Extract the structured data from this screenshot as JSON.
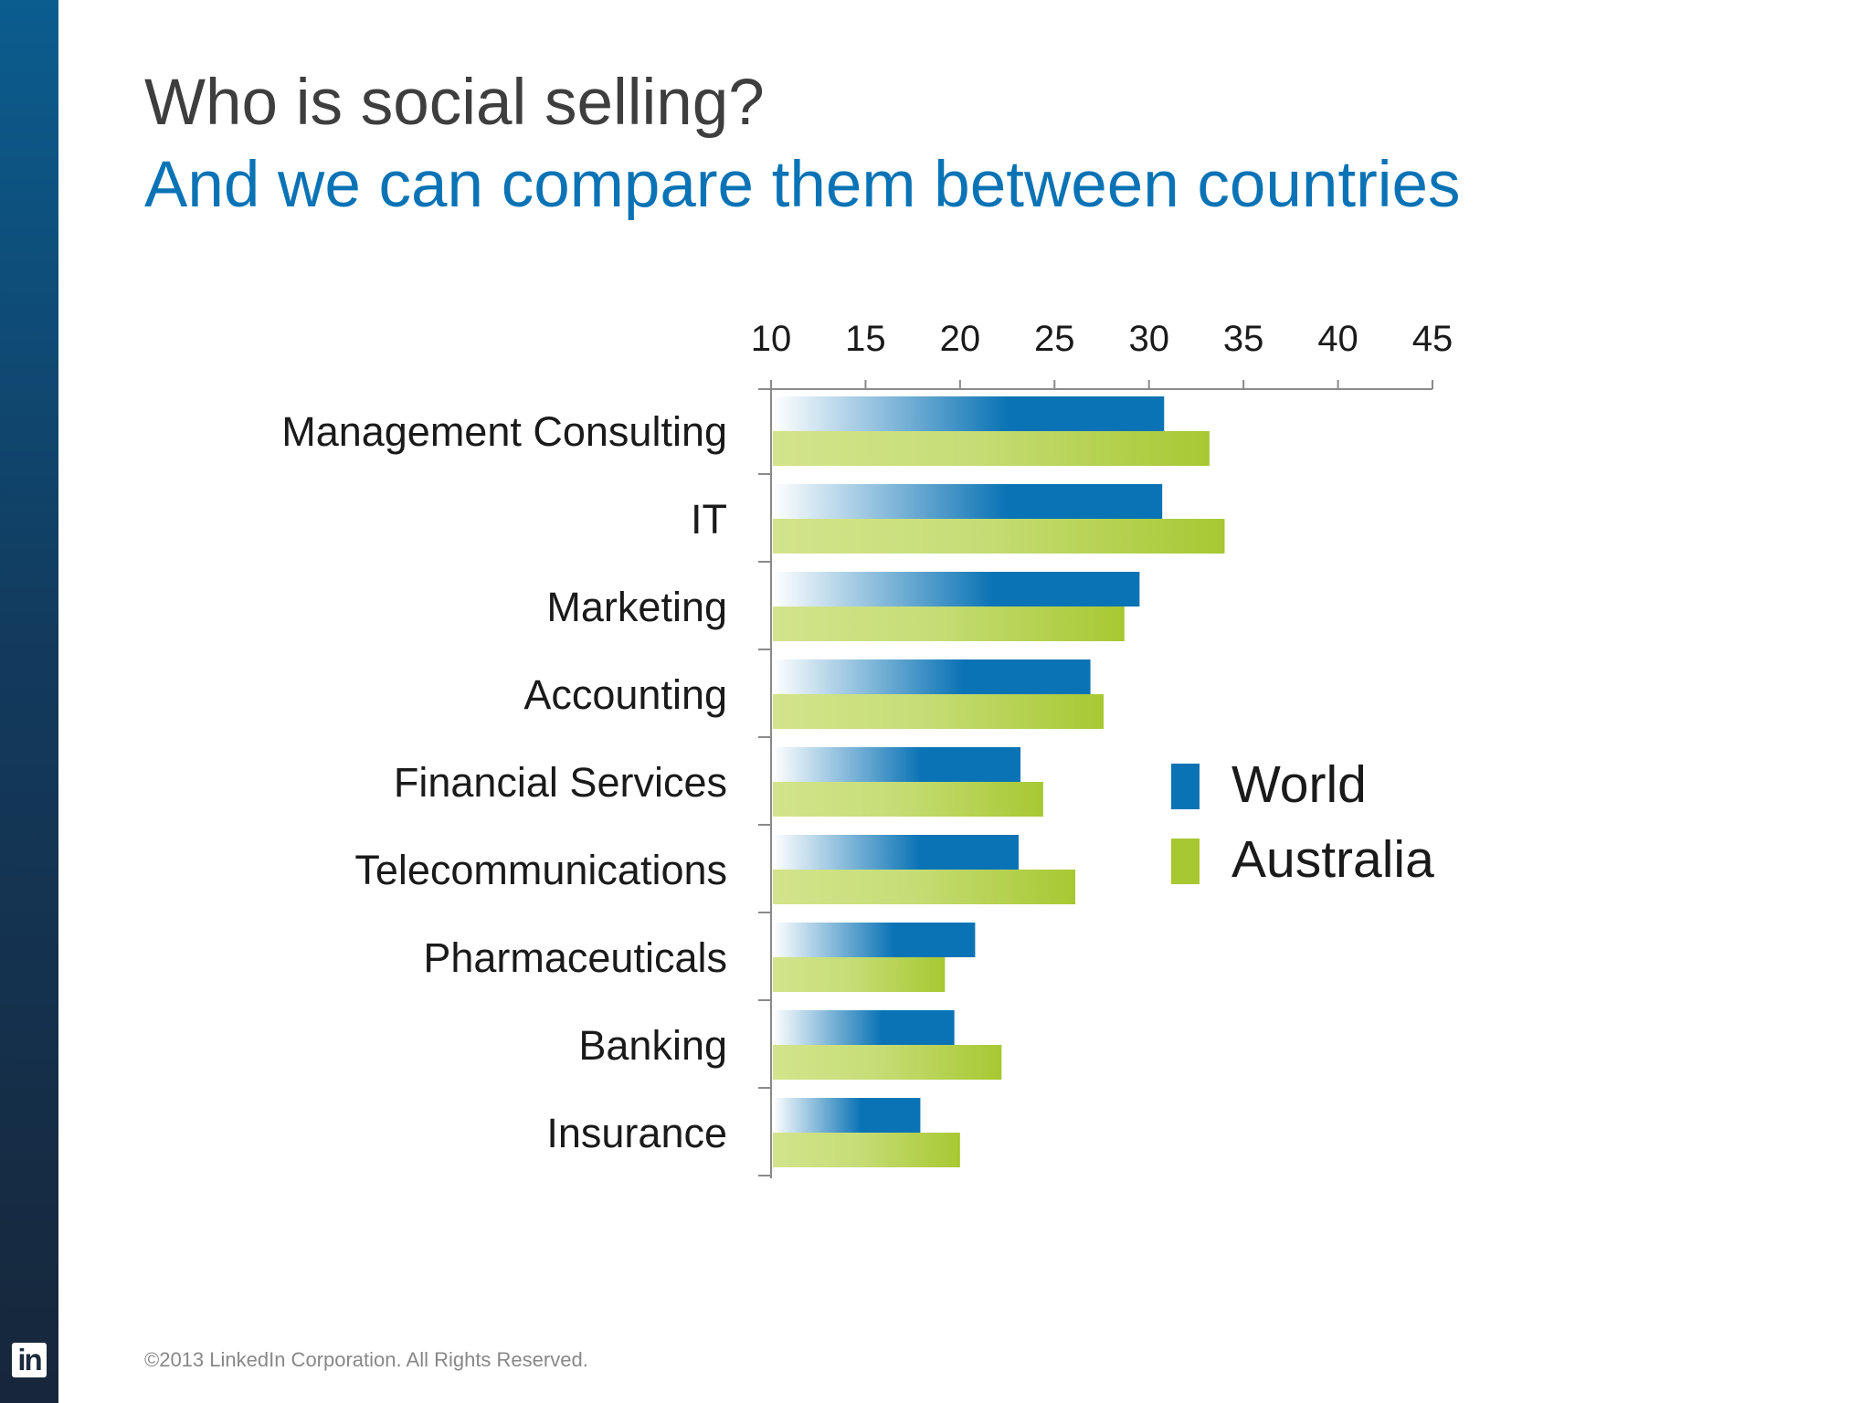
{
  "slide": {
    "title": "Who is social selling?",
    "subtitle": "And we can compare them between countries",
    "footer": "©2013 LinkedIn Corporation. All Rights Reserved.",
    "logo_text": "in"
  },
  "colors": {
    "world": "#0a73b5",
    "australia": "#a8c832",
    "australia_light": "#d3e48c",
    "title": "#3e3e3e",
    "subtitle": "#0a73b5"
  },
  "chart_data": {
    "type": "bar",
    "orientation": "horizontal",
    "categories": [
      "Management Consulting",
      "IT",
      "Marketing",
      "Accounting",
      "Financial Services",
      "Telecommunications",
      "Pharmaceuticals",
      "Banking",
      "Insurance"
    ],
    "series": [
      {
        "name": "World",
        "values": [
          30.8,
          30.7,
          29.5,
          26.9,
          23.2,
          23.1,
          20.8,
          19.7,
          17.9
        ]
      },
      {
        "name": "Australia",
        "values": [
          33.2,
          34.0,
          28.7,
          27.6,
          24.4,
          26.1,
          19.2,
          22.2,
          20.0
        ]
      }
    ],
    "xlim": [
      10,
      45
    ],
    "xticks": [
      10,
      15,
      20,
      25,
      30,
      35,
      40,
      45
    ],
    "axis_position": "top",
    "legend_position": "right",
    "grid": false
  }
}
